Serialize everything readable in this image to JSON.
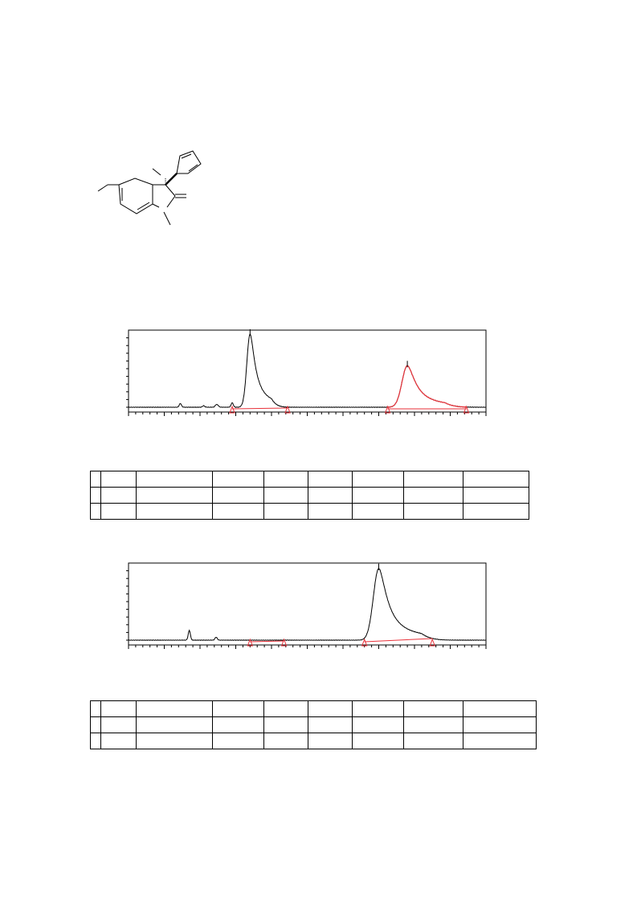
{
  "colors": {
    "trace": "#000000",
    "integration": "#e8323a"
  },
  "chromatograms": [
    {
      "id": "chrom1",
      "peaks": [
        {
          "rt": 0.34,
          "h": 0.97,
          "w": 0.009,
          "tail": 0.02
        },
        {
          "rt": 0.78,
          "h": 0.55,
          "w": 0.015,
          "tail": 0.035,
          "integrated": true
        }
      ],
      "minor": [
        [
          0.145,
          0.05
        ],
        [
          0.245,
          0.03
        ],
        [
          0.29,
          0.06
        ],
        [
          0.25,
          0.02
        ],
        [
          0.21,
          0.02
        ]
      ],
      "integration_marks": [
        0.29,
        0.445,
        0.725,
        0.945
      ]
    },
    {
      "id": "chrom2",
      "peaks": [
        {
          "rt": 0.7,
          "h": 0.95,
          "w": 0.015,
          "tail": 0.04
        }
      ],
      "minor": [
        [
          0.17,
          0.13
        ],
        [
          0.245,
          0.04
        ]
      ],
      "integration_marks": [
        0.34,
        0.435,
        0.66,
        0.85
      ]
    }
  ],
  "tables": [
    {
      "id": "table1",
      "rows": 3,
      "cols": 9
    },
    {
      "id": "table2",
      "rows": 3,
      "cols": 9
    }
  ]
}
